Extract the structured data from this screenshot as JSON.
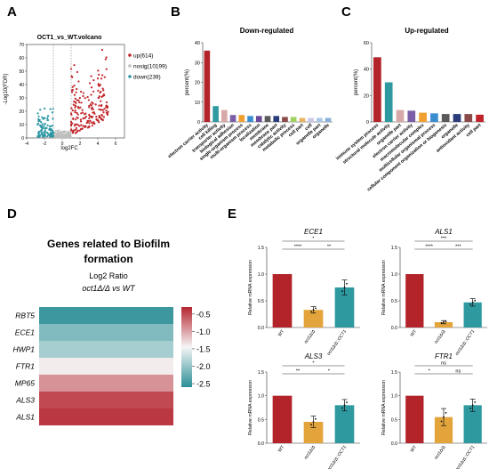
{
  "panel_labels": {
    "a": "A",
    "b": "B",
    "c": "C",
    "d": "D",
    "e": "E"
  },
  "colors": {
    "up": "#c0242a",
    "nosig": "#bdbdbd",
    "down": "#2a97a3",
    "wt": "#b2232a",
    "mut": "#e2a43b",
    "rev": "#2e9aa0"
  },
  "volcano": {
    "title": "OCT1_vs_WT.volcano",
    "xlabel": "log2FC",
    "ylabel": "-Log10(FDR)",
    "xticks": [
      "-4",
      "-2",
      "0",
      "2",
      "4",
      "6"
    ],
    "yticks": [
      "0",
      "10",
      "20",
      "30",
      "40",
      "50",
      "60",
      "70"
    ],
    "legend": [
      {
        "key": "up",
        "label": "up(614)"
      },
      {
        "key": "nosig",
        "label": "nosig(10199)"
      },
      {
        "key": "down",
        "label": "down(239)"
      }
    ]
  },
  "chart_data": [
    {
      "type": "scatter",
      "panel": "A",
      "title": "OCT1_vs_WT.volcano",
      "xlabel": "log2FC",
      "ylabel": "-Log10(FDR)",
      "xlim": [
        -4,
        7
      ],
      "ylim": [
        0,
        70
      ],
      "series": [
        {
          "name": "up(614)",
          "count": 614
        },
        {
          "name": "nosig(10199)",
          "count": 10199
        },
        {
          "name": "down(239)",
          "count": 239
        }
      ]
    },
    {
      "type": "bar",
      "panel": "B",
      "title": "Down-regulated",
      "ylabel": "percent(%)",
      "ylim": [
        0,
        40
      ],
      "yticks": [
        "0",
        "10",
        "20",
        "30",
        "40"
      ],
      "categories": [
        "electron carrier activity",
        "cell killing",
        "transporter activity",
        "biological adhesion",
        "single-organism process",
        "multi-organism process",
        "localization",
        "membrane",
        "membrane part",
        "catalytic activity",
        "metabolic process",
        "cell part",
        "cell",
        "organelle part",
        "organelle"
      ],
      "values": [
        36,
        8,
        6,
        3.5,
        3.5,
        3,
        3,
        3,
        3,
        2.5,
        2.5,
        2,
        2,
        2,
        2
      ],
      "colors": [
        "#b2232a",
        "#2e9aa0",
        "#d6a8a8",
        "#7b5ea7",
        "#f0a030",
        "#3a8ed0",
        "#6a4b9a",
        "#5a5a5a",
        "#2a3d7a",
        "#8a4a4a",
        "#a0d060",
        "#e8b060",
        "#c8c8e8",
        "#a8c8e8",
        "#88b0d8"
      ]
    },
    {
      "type": "bar",
      "panel": "C",
      "title": "Up-regulated",
      "ylabel": "percent(%)",
      "ylim": [
        0,
        60
      ],
      "yticks": [
        "0",
        "20",
        "40",
        "60"
      ],
      "categories": [
        "immune system process",
        "structural molecule activity",
        "organelle part",
        "electron carrier activity",
        "macromolecular complex",
        "multicellular organismal process",
        "cellular component organization or biogenesis",
        "organelle",
        "antioxidant activity",
        "cell part"
      ],
      "values": [
        49,
        30,
        9,
        8.5,
        7,
        6.5,
        6,
        6,
        6,
        5.5
      ],
      "colors": [
        "#b2232a",
        "#2e9aa0",
        "#d6a8a8",
        "#7b5ea7",
        "#f0a030",
        "#3a8ed0",
        "#5a5a5a",
        "#2a3d7a",
        "#8a4a4a",
        "#c0242a"
      ]
    },
    {
      "type": "heatmap",
      "panel": "D",
      "title": "Genes related to Biofilm formation",
      "legend_title": "Log2 Ratio",
      "legend_subtitle": "oct1Δ/Δ vs WT",
      "rows": [
        "RBT5",
        "ECE1",
        "HWP1",
        "FTR1",
        "MP65",
        "ALS3",
        "ALS1"
      ],
      "values": [
        -2.5,
        -2.1,
        -1.9,
        -1.4,
        -0.9,
        -0.5,
        -0.4
      ],
      "colorbar_ticks": [
        "-0.5",
        "-1.0",
        "-1.5",
        "-2.0",
        "-2.5"
      ],
      "range": [
        -2.6,
        -0.3
      ]
    },
    {
      "type": "bar",
      "panel": "E",
      "ylabel": "Relative mRNA expression",
      "categories": [
        "WT",
        "oct1Δ/Δ",
        "oct1Δ/Δ::OCT1"
      ],
      "subplots": [
        {
          "title": "ECE1",
          "ylim": [
            0,
            1.5
          ],
          "yticks": [
            "0.0",
            "0.5",
            "1.0",
            "1.5"
          ],
          "values": [
            1.0,
            0.33,
            0.75
          ],
          "errors": [
            0,
            0.06,
            0.14
          ],
          "sig": [
            {
              "from": 0,
              "to": 1,
              "label": "****",
              "level": 1
            },
            {
              "from": 0,
              "to": 2,
              "label": "*",
              "level": 2
            },
            {
              "from": 1,
              "to": 2,
              "label": "**",
              "level": 1
            }
          ]
        },
        {
          "title": "ALS1",
          "ylim": [
            0,
            1.5
          ],
          "yticks": [
            "0.0",
            "0.5",
            "1.0",
            "1.5"
          ],
          "values": [
            1.0,
            0.1,
            0.47
          ],
          "errors": [
            0,
            0.03,
            0.07
          ],
          "sig": [
            {
              "from": 0,
              "to": 1,
              "label": "****",
              "level": 1
            },
            {
              "from": 0,
              "to": 2,
              "label": "***",
              "level": 2
            },
            {
              "from": 1,
              "to": 2,
              "label": "***",
              "level": 1
            }
          ]
        },
        {
          "title": "ALS3",
          "ylim": [
            0,
            1.5
          ],
          "yticks": [
            "0.0",
            "0.5",
            "1.0",
            "1.5"
          ],
          "values": [
            1.0,
            0.45,
            0.8
          ],
          "errors": [
            0,
            0.12,
            0.12
          ],
          "sig": [
            {
              "from": 0,
              "to": 1,
              "label": "**",
              "level": 1
            },
            {
              "from": 0,
              "to": 2,
              "label": "*",
              "level": 2
            },
            {
              "from": 1,
              "to": 2,
              "label": "*",
              "level": 1
            }
          ]
        },
        {
          "title": "FTR1",
          "ylim": [
            0,
            1.5
          ],
          "yticks": [
            "0.0",
            "0.5",
            "1.0",
            "1.5"
          ],
          "values": [
            1.0,
            0.55,
            0.8
          ],
          "errors": [
            0,
            0.18,
            0.13
          ],
          "sig": [
            {
              "from": 0,
              "to": 1,
              "label": "*",
              "level": 1
            },
            {
              "from": 0,
              "to": 2,
              "label": "ns",
              "level": 2
            },
            {
              "from": 1,
              "to": 2,
              "label": "ns",
              "level": 1
            }
          ]
        }
      ]
    }
  ]
}
